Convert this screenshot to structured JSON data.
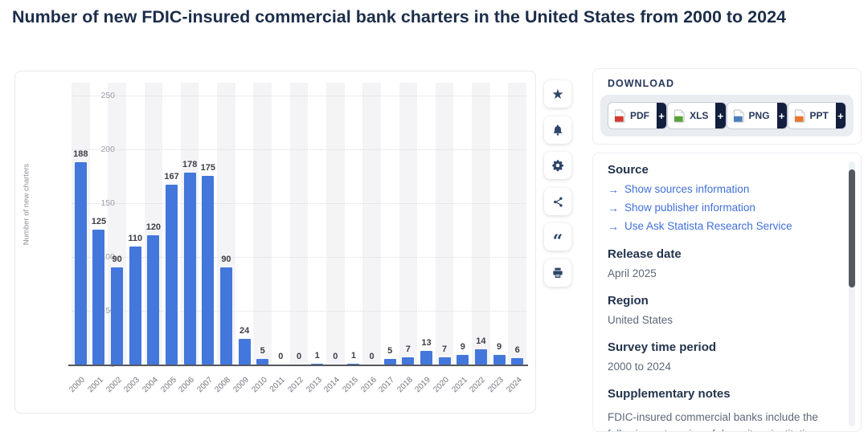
{
  "page": {
    "title": "Number of new FDIC-insured commercial bank charters in the United States from 2000 to 2024"
  },
  "chart_data": {
    "type": "bar",
    "title": "Number of new FDIC-insured commercial bank charters in the United States from 2000 to 2024",
    "categories": [
      "2000",
      "2001",
      "2002",
      "2003",
      "2004",
      "2005",
      "2006",
      "2007",
      "2008",
      "2009",
      "2010",
      "2011",
      "2012",
      "2013",
      "2014",
      "2015",
      "2016",
      "2017",
      "2018",
      "2019",
      "2020",
      "2021",
      "2022",
      "2023",
      "2024"
    ],
    "values": [
      188,
      125,
      90,
      110,
      120,
      167,
      178,
      175,
      90,
      24,
      5,
      0,
      0,
      1,
      0,
      1,
      0,
      5,
      7,
      13,
      7,
      9,
      14,
      9,
      6
    ],
    "xlabel": "",
    "ylabel": "Number of new charters",
    "yticks": [
      0,
      50,
      100,
      150,
      200,
      250
    ],
    "ylim": [
      0,
      250
    ],
    "bar_color": "#4377db",
    "stripe_color": "#f4f4f6",
    "grid": "horizontal-dotted",
    "legend": "none"
  },
  "actions": {
    "buttons": [
      {
        "icon": "star-icon",
        "name": "favorite"
      },
      {
        "icon": "bell-icon",
        "name": "alerts"
      },
      {
        "icon": "gear-icon",
        "name": "settings"
      },
      {
        "icon": "share-icon",
        "name": "share"
      },
      {
        "icon": "quote-icon",
        "name": "cite"
      },
      {
        "icon": "printer-icon",
        "name": "print"
      }
    ]
  },
  "download": {
    "label": "DOWNLOAD",
    "plus": "+",
    "buttons": [
      {
        "label": "PDF",
        "icon": "pdf-file-icon",
        "color": "#d23b2e"
      },
      {
        "label": "XLS",
        "icon": "xls-file-icon",
        "color": "#5aa33a"
      },
      {
        "label": "PNG",
        "icon": "png-file-icon",
        "color": "#4a7ebb"
      },
      {
        "label": "PPT",
        "icon": "ppt-file-icon",
        "color": "#e8762d"
      }
    ]
  },
  "info": {
    "source_heading": "Source",
    "link_arrow": "→",
    "links": [
      "Show sources information",
      "Show publisher information",
      "Use Ask Statista Research Service"
    ],
    "release_heading": "Release date",
    "release_value": "April 2025",
    "region_heading": "Region",
    "region_value": "United States",
    "survey_heading": "Survey time period",
    "survey_value": "2000 to 2024",
    "notes_heading": "Supplementary notes",
    "notes_text": "FDIC-insured commercial banks include the following categories of depository institutions"
  }
}
